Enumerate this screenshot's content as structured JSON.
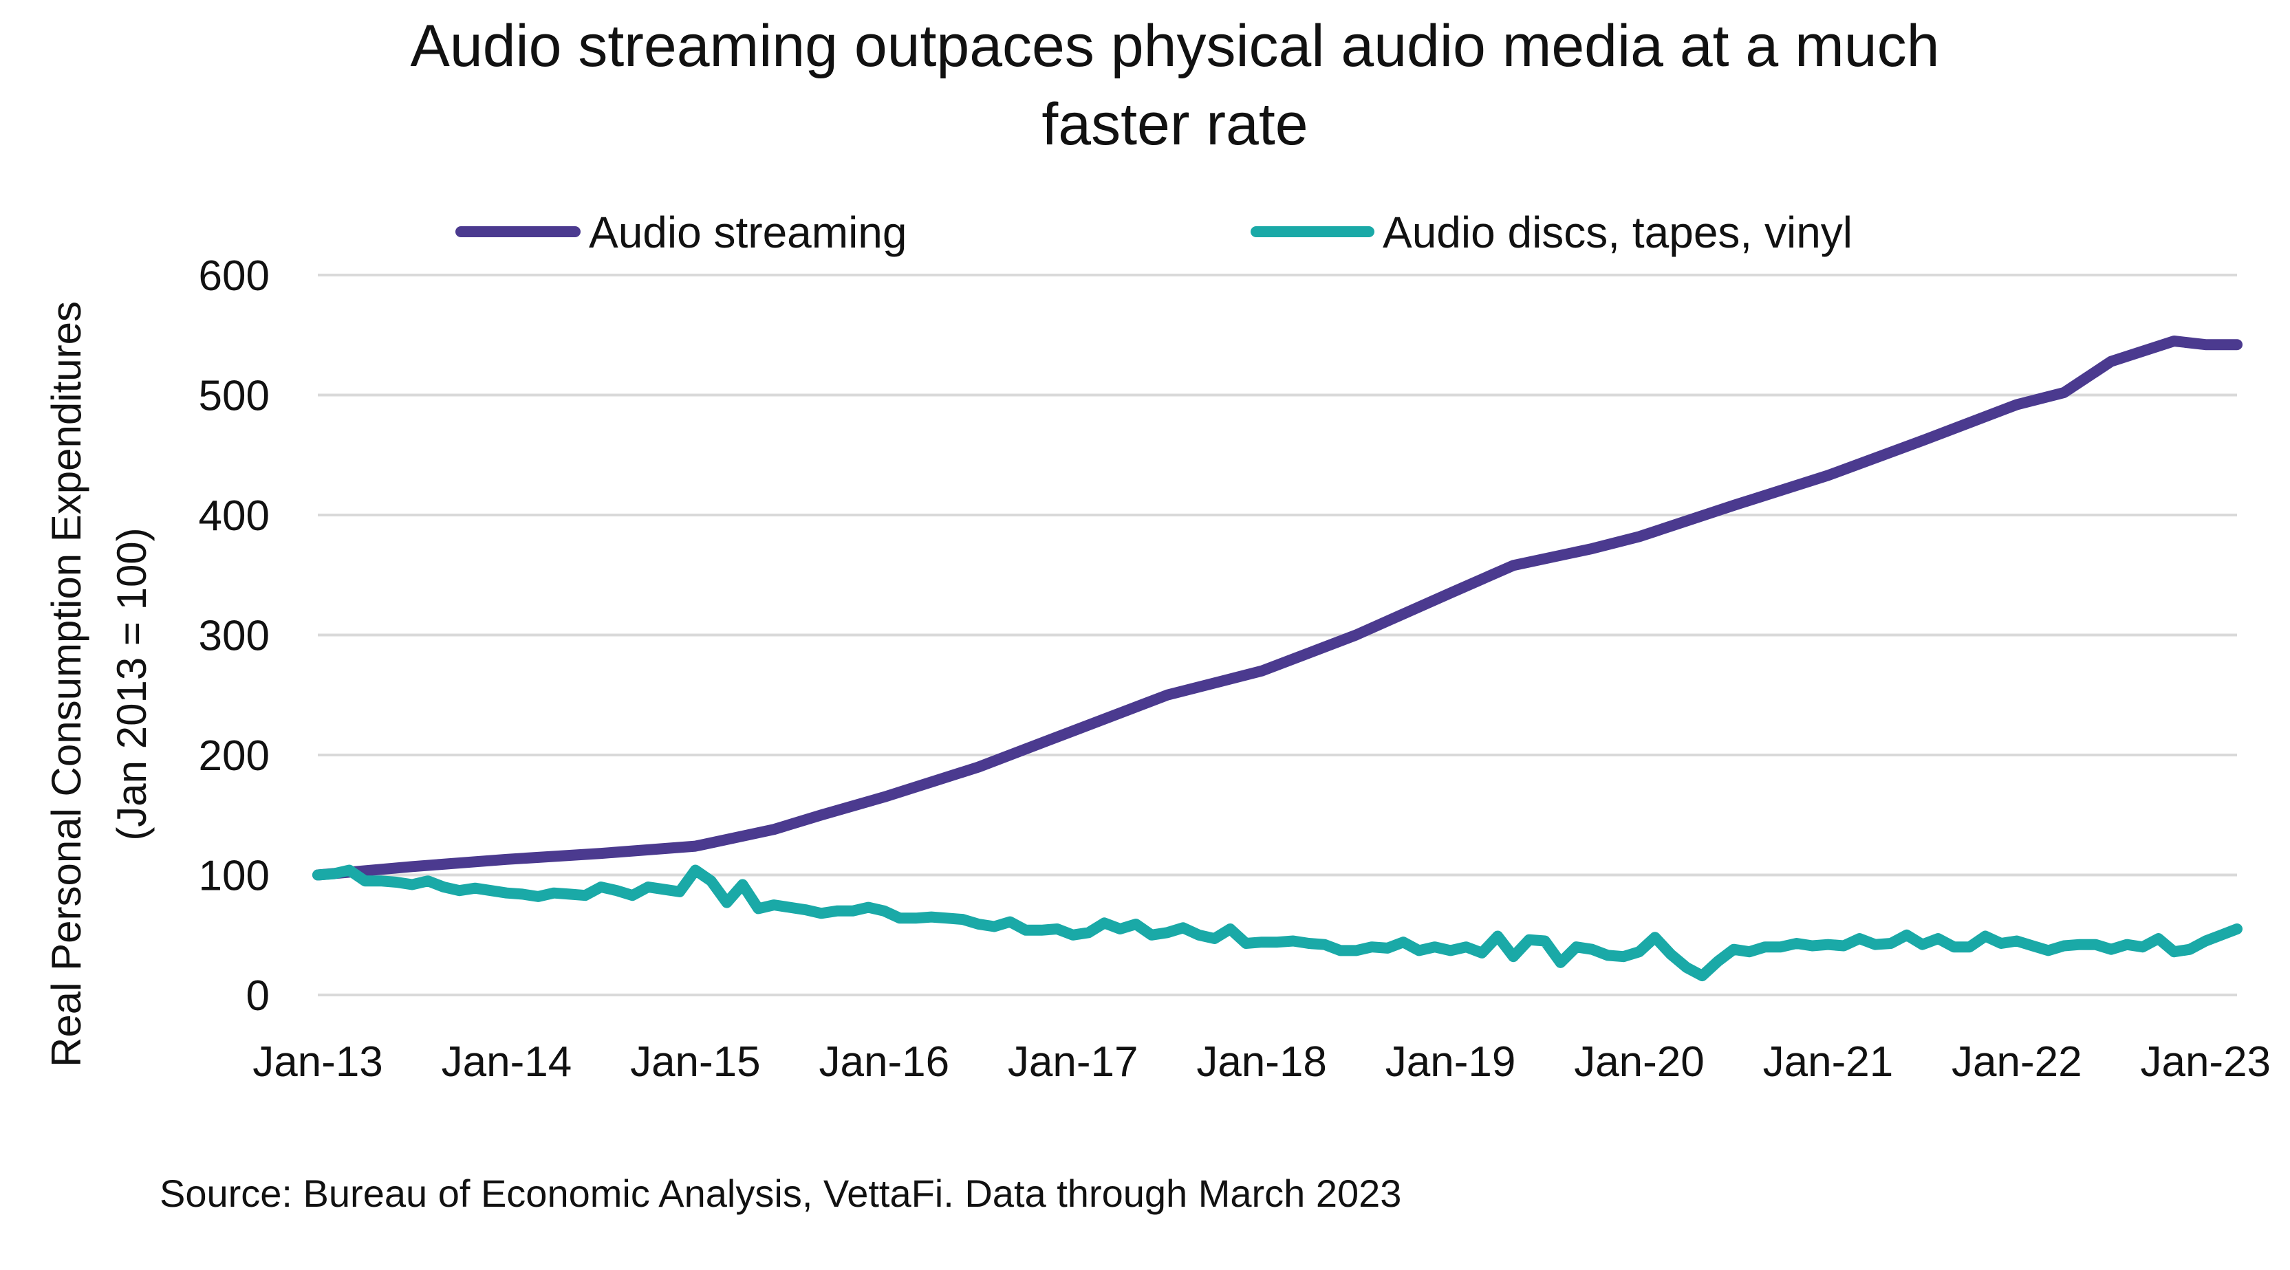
{
  "chart_data": {
    "type": "line",
    "title_line1": "Audio streaming outpaces physical audio media at a much",
    "title_line2": "faster rate",
    "ylabel_line1": "Real Personal Consumption Expenditures",
    "ylabel_line2": "(Jan 2013 = 100)",
    "xlabel": "",
    "source": "Source: Bureau of Economic Analysis, VettaFi. Data through March 2023",
    "ylim": [
      0,
      600
    ],
    "yticks": [
      0,
      100,
      200,
      300,
      400,
      500,
      600
    ],
    "xticks": [
      "Jan-13",
      "Jan-14",
      "Jan-15",
      "Jan-16",
      "Jan-17",
      "Jan-18",
      "Jan-19",
      "Jan-20",
      "Jan-21",
      "Jan-22",
      "Jan-23"
    ],
    "grid": true,
    "legend_position": "top",
    "series": [
      {
        "name": "Audio streaming",
        "color": "#4b3a8f",
        "keypoints": [
          [
            "2013-01",
            100
          ],
          [
            "2013-07",
            107
          ],
          [
            "2014-01",
            113
          ],
          [
            "2014-07",
            118
          ],
          [
            "2015-01",
            124
          ],
          [
            "2015-06",
            138
          ],
          [
            "2015-09",
            150
          ],
          [
            "2016-01",
            165
          ],
          [
            "2016-07",
            190
          ],
          [
            "2017-01",
            220
          ],
          [
            "2017-07",
            250
          ],
          [
            "2018-01",
            270
          ],
          [
            "2018-07",
            300
          ],
          [
            "2019-01",
            335
          ],
          [
            "2019-05",
            358
          ],
          [
            "2019-10",
            372
          ],
          [
            "2020-01",
            382
          ],
          [
            "2020-07",
            408
          ],
          [
            "2021-01",
            433
          ],
          [
            "2021-07",
            462
          ],
          [
            "2022-01",
            492
          ],
          [
            "2022-04",
            502
          ],
          [
            "2022-07",
            528
          ],
          [
            "2022-11",
            545
          ],
          [
            "2023-01",
            542
          ],
          [
            "2023-03",
            542
          ]
        ]
      },
      {
        "name": "Audio discs, tapes, vinyl",
        "color": "#1aa9a7",
        "values": [
          100,
          101,
          104,
          95,
          95,
          94,
          92,
          95,
          90,
          87,
          89,
          87,
          85,
          84,
          82,
          85,
          84,
          83,
          90,
          87,
          83,
          90,
          88,
          86,
          104,
          95,
          77,
          92,
          72,
          75,
          73,
          71,
          68,
          70,
          70,
          73,
          70,
          64,
          64,
          65,
          64,
          63,
          59,
          57,
          61,
          54,
          54,
          55,
          50,
          52,
          60,
          55,
          59,
          50,
          52,
          56,
          50,
          47,
          55,
          43,
          44,
          44,
          45,
          43,
          42,
          37,
          37,
          40,
          39,
          44,
          37,
          40,
          37,
          40,
          35,
          49,
          32,
          46,
          45,
          27,
          40,
          38,
          33,
          32,
          36,
          48,
          34,
          23,
          16,
          28,
          38,
          36,
          40,
          40,
          43,
          41,
          42,
          41,
          47,
          42,
          43,
          50,
          42,
          47,
          40,
          40,
          49,
          43,
          45,
          41,
          37,
          41,
          42,
          42,
          38,
          42,
          40,
          47,
          36,
          38,
          45,
          50,
          55
        ]
      }
    ]
  }
}
